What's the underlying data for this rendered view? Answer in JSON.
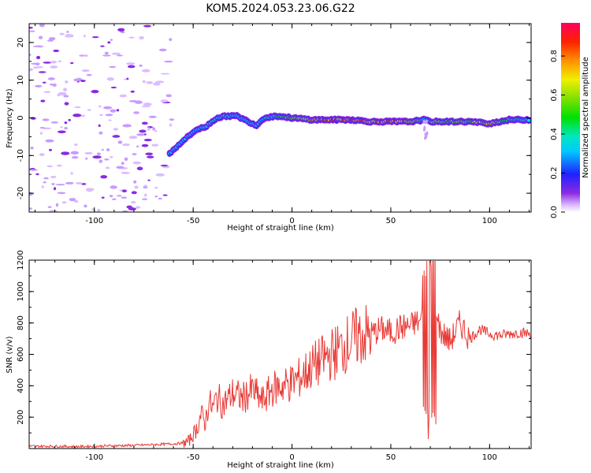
{
  "title": "KOM5.2024.053.23.06.G22",
  "colors": {
    "snr_line": "#e83a35",
    "axes": "#000000"
  },
  "colorbar": {
    "label": "Normalized spectral amplitude",
    "ticks": [
      "0.0",
      "0.2",
      "0.4",
      "0.6",
      "0.8"
    ],
    "colormap": "rainbow (white→violet→blue→cyan→green→yellow→orange→red→magenta)"
  },
  "chart_data": [
    {
      "type": "heatmap",
      "title": "KOM5.2024.053.23.06.G22",
      "xlabel": "Height of straight line (km)",
      "ylabel": "Frequency (Hz)",
      "xlim": [
        -133,
        121
      ],
      "ylim": [
        -25,
        25
      ],
      "x_ticks": [
        "-100",
        "-50",
        "0",
        "50",
        "100"
      ],
      "y_ticks": [
        "-20",
        "-10",
        "0",
        "10",
        "20"
      ],
      "description_points": {
        "ridge_x": [
          -62,
          -55,
          -48,
          -44,
          -38,
          -33,
          -28,
          -22,
          -18,
          -14,
          -8,
          0,
          10,
          20,
          30,
          40,
          50,
          60,
          67,
          70,
          80,
          90,
          100,
          110,
          120
        ],
        "ridge_freq": [
          -9.5,
          -6,
          -3,
          -2.5,
          0,
          0.5,
          0.5,
          -1,
          -2,
          0,
          0.5,
          0,
          -0.5,
          -0.5,
          -0.5,
          -1,
          -1,
          -1,
          -0.5,
          -1,
          -1,
          -1,
          -1.5,
          -0.5,
          -0.5
        ],
        "ridge_amplitude": [
          0.25,
          0.3,
          0.3,
          0.3,
          0.35,
          0.35,
          0.3,
          0.25,
          0.3,
          0.3,
          0.35,
          0.5,
          0.7,
          0.8,
          0.85,
          0.7,
          0.8,
          0.7,
          0.3,
          0.5,
          0.55,
          0.5,
          0.7,
          0.4,
          0.35
        ],
        "noise_region_x": [
          -133,
          -60
        ]
      }
    },
    {
      "type": "line",
      "xlabel": "Height of straight line (km)",
      "ylabel": "SNR (v/v)",
      "xlim": [
        -133,
        121
      ],
      "ylim": [
        0,
        1200
      ],
      "x_ticks": [
        "-100",
        "-50",
        "0",
        "50",
        "100"
      ],
      "y_ticks": [
        "200",
        "400",
        "600",
        "800",
        "1000",
        "1200"
      ],
      "series": [
        {
          "x": [
            -133,
            -120,
            -110,
            -100,
            -90,
            -80,
            -70,
            -60,
            -55,
            -52,
            -50,
            -48,
            -46,
            -44,
            -42,
            -40,
            -38,
            -35,
            -30,
            -25,
            -20,
            -15,
            -10,
            -5,
            0,
            5,
            10,
            15,
            20,
            25,
            30,
            35,
            40,
            45,
            50,
            55,
            60,
            65,
            67,
            68,
            69,
            70,
            71,
            72,
            75,
            80,
            85,
            90,
            95,
            100,
            105,
            110,
            115,
            121
          ],
          "y": [
            15,
            15,
            12,
            15,
            18,
            20,
            25,
            30,
            35,
            50,
            90,
            130,
            220,
            160,
            300,
            250,
            330,
            280,
            350,
            320,
            370,
            300,
            380,
            400,
            420,
            460,
            520,
            560,
            600,
            640,
            690,
            720,
            730,
            760,
            740,
            770,
            780,
            820,
            1000,
            300,
            60,
            1150,
            350,
            900,
            750,
            680,
            800,
            700,
            760,
            730,
            720,
            730,
            740,
            730
          ]
        }
      ]
    }
  ]
}
